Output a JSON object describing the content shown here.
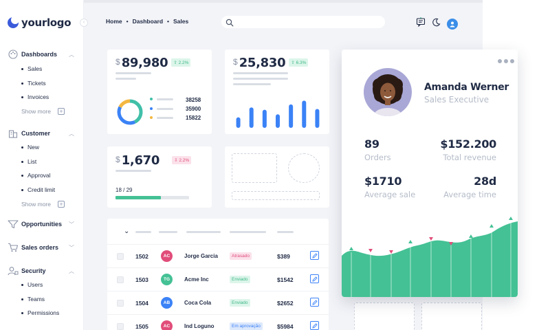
{
  "brand": {
    "name": "yourlogo"
  },
  "colors": {
    "accent": "#3b82f6",
    "green": "#44c195",
    "pink": "#e14d7a",
    "teal": "#40bfa8",
    "amber": "#f4b740"
  },
  "sidebar": {
    "dashboards": {
      "label": "Dashboards",
      "items": [
        "Sales",
        "Tickets",
        "Invoices"
      ],
      "show_more": "Show more"
    },
    "customer": {
      "label": "Customer",
      "items": [
        "New",
        "List",
        "Approval",
        "Credit limit"
      ],
      "show_more": "Show more"
    },
    "opportunities": {
      "label": "Opportunities"
    },
    "sales_orders": {
      "label": "Sales orders"
    },
    "security": {
      "label": "Security",
      "items": [
        "Users",
        "Teams",
        "Permissions"
      ]
    }
  },
  "header": {
    "breadcrumb": [
      "Home",
      "Dashboard",
      "Sales"
    ],
    "search": {
      "placeholder": ""
    }
  },
  "kpis": {
    "k1": {
      "currency": "$",
      "value": "89,980",
      "change": "2.2%",
      "direction": "up",
      "legend": [
        {
          "value": "38258",
          "color": "#40bfa8"
        },
        {
          "value": "35900",
          "color": "#3b82f6"
        },
        {
          "value": "15822",
          "color": "#f4b740"
        }
      ]
    },
    "k2": {
      "currency": "$",
      "value": "25,830",
      "change": "6.3%",
      "direction": "up"
    },
    "k3": {
      "currency": "$",
      "value": "1,670",
      "change": "2.2%",
      "direction": "down",
      "progress_text": "18 / 29",
      "progress": 0.62
    }
  },
  "chart_data": [
    {
      "type": "pie",
      "values": [
        38258,
        35900,
        15822
      ],
      "colors": [
        "#40bfa8",
        "#3b82f6",
        "#f4b740"
      ]
    },
    {
      "type": "bar",
      "values": [
        14,
        27,
        24,
        18,
        31,
        36,
        25
      ],
      "colors": [
        "#3b82f6"
      ]
    }
  ],
  "orders": [
    {
      "id": "1502",
      "initials": "AC",
      "avatar_color": "#e14d7a",
      "name": "Jorge Garcia",
      "status": "Atrasado",
      "status_color": "#e14d7a",
      "status_bg": "#fbe1ea",
      "amount": "$389"
    },
    {
      "id": "1503",
      "initials": "TG",
      "avatar_color": "#44c195",
      "name": "Acme Inc",
      "status": "Enviado",
      "status_color": "#3fb88a",
      "status_bg": "#dcf5ea",
      "amount": "$1542"
    },
    {
      "id": "1504",
      "initials": "AB",
      "avatar_color": "#3b82f6",
      "name": "Coca Cola",
      "status": "Enviado",
      "status_color": "#3fb88a",
      "status_bg": "#dcf5ea",
      "amount": "$2652"
    },
    {
      "id": "1505",
      "initials": "AC",
      "avatar_color": "#e14d7a",
      "name": "Ind Loguno",
      "status": "Em aprovação",
      "status_color": "#3b82f6",
      "status_bg": "#dce8fc",
      "amount": "$5984"
    }
  ],
  "profile": {
    "name": "Amanda Werner",
    "role": "Sales Executive",
    "stats": {
      "orders": {
        "value": "89",
        "label": "Orders"
      },
      "total_revenue": {
        "value": "$152.200",
        "label": "Total revenue"
      },
      "average_sale": {
        "value": "$1710",
        "label": "Average sale"
      },
      "average_time": {
        "value": "28d",
        "label": "Average time"
      }
    }
  }
}
